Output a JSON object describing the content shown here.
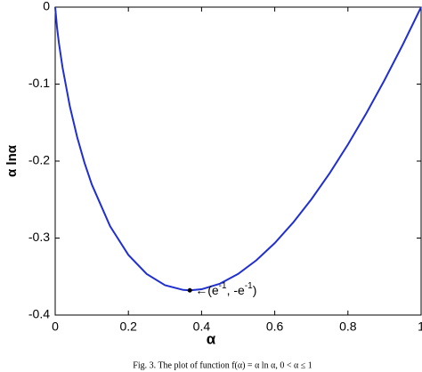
{
  "chart_data": {
    "type": "line",
    "xlabel": "α",
    "ylabel": "α lnα",
    "x": [
      0,
      0.005,
      0.01,
      0.02,
      0.04,
      0.06,
      0.08,
      0.1,
      0.15,
      0.2,
      0.25,
      0.3,
      0.35,
      0.3679,
      0.4,
      0.45,
      0.5,
      0.55,
      0.6,
      0.65,
      0.7,
      0.75,
      0.8,
      0.85,
      0.9,
      0.95,
      1
    ],
    "series": [
      {
        "color": "#1f2fd0",
        "values": [
          0,
          -0.0265,
          -0.0461,
          -0.0782,
          -0.1288,
          -0.1688,
          -0.2021,
          -0.2303,
          -0.2846,
          -0.3219,
          -0.3466,
          -0.3612,
          -0.3674,
          -0.3679,
          -0.3665,
          -0.3593,
          -0.3466,
          -0.3288,
          -0.3065,
          -0.28,
          -0.2497,
          -0.2158,
          -0.1785,
          -0.1381,
          -0.0948,
          -0.0487,
          0
        ]
      }
    ],
    "annotation": {
      "x": 0.3679,
      "y": -0.3679,
      "parts": [
        "←(e",
        "-1",
        ", -e",
        "-1",
        ")"
      ]
    },
    "xlim": [
      0,
      1
    ],
    "ylim": [
      -0.4,
      0
    ],
    "xticks": [
      0,
      0.2,
      0.4,
      0.6,
      0.8,
      1
    ],
    "yticks": [
      0,
      -0.1,
      -0.2,
      -0.3,
      -0.4
    ],
    "caption": "Fig. 3. The plot of function f(α) = α ln α, 0 < α ≤ 1"
  }
}
